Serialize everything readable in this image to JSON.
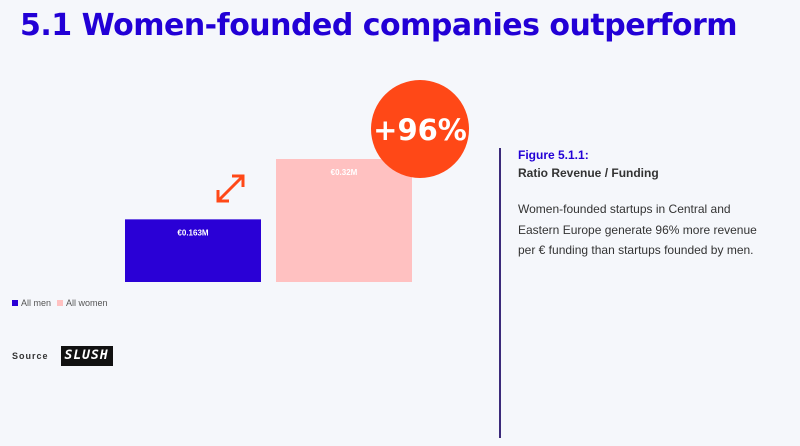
{
  "page": {
    "title": "5.1 Women-founded companies outperform",
    "title_color": "#2200d6"
  },
  "chart_data": {
    "type": "bar",
    "categories": [
      "All men",
      "All women"
    ],
    "values": [
      0.163,
      0.32
    ],
    "value_labels": [
      "€0.163M",
      "€0.32M"
    ],
    "colors": [
      "#2a00d6",
      "#ffc1c1"
    ],
    "ylim": [
      0,
      0.32
    ],
    "grid": false,
    "legend": "bottom-left",
    "annotation": {
      "text": "+96%",
      "circle_color": "#ff4817",
      "arrow_color": "#ff4817"
    }
  },
  "legend": {
    "items": [
      {
        "label": "All men",
        "color": "#2a00d6"
      },
      {
        "label": "All women",
        "color": "#ffc1c1"
      }
    ]
  },
  "source": {
    "label": "Source",
    "logo_text": "SLUSH"
  },
  "figure": {
    "title": "Figure 5.1.1:",
    "subtitle": "Ratio Revenue / Funding",
    "description": "Women-founded startups in Central and Eastern Europe generate 96% more revenue per € funding than startups founded by men.",
    "title_color": "#2200d6",
    "divider_color": "#3b2a7a"
  }
}
